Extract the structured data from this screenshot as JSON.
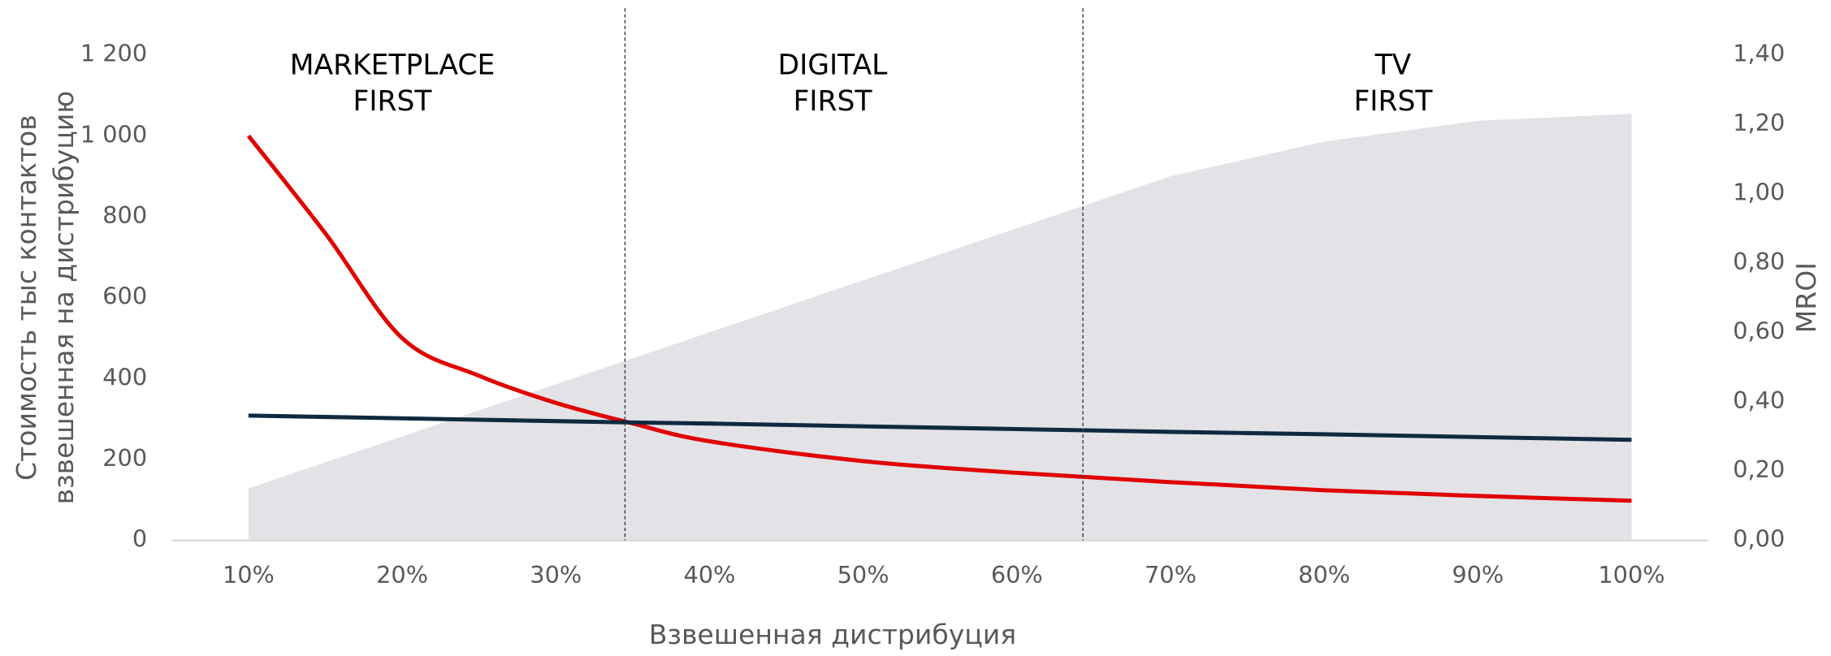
{
  "chart_data": {
    "type": "combo",
    "x": [
      10,
      15,
      20,
      25,
      30,
      35,
      40,
      50,
      60,
      70,
      80,
      90,
      100
    ],
    "xlim": [
      5,
      105
    ],
    "xticks": [
      {
        "value": 10,
        "label": "10%"
      },
      {
        "value": 20,
        "label": "20%"
      },
      {
        "value": 30,
        "label": "30%"
      },
      {
        "value": 40,
        "label": "40%"
      },
      {
        "value": 50,
        "label": "50%"
      },
      {
        "value": 60,
        "label": "60%"
      },
      {
        "value": 70,
        "label": "70%"
      },
      {
        "value": 80,
        "label": "80%"
      },
      {
        "value": 90,
        "label": "90%"
      },
      {
        "value": 100,
        "label": "100%"
      }
    ],
    "xlabel": "Взвешенная дистрибуция",
    "ylabel": [
      "Стоимость тыс контактов",
      "взвешенная на дистрибуцию"
    ],
    "y2label": "MROI",
    "ylim": [
      0,
      1200
    ],
    "yticks": [
      0,
      200,
      400,
      600,
      800,
      {
        "value": 1000,
        "label": "1 000"
      },
      {
        "value": 1200,
        "label": "1 200"
      }
    ],
    "y2lim": [
      0,
      1.4
    ],
    "y2ticks": [
      {
        "value": 0,
        "label": "0,00"
      },
      {
        "value": 0.2,
        "label": "0,20"
      },
      {
        "value": 0.4,
        "label": "0,40"
      },
      {
        "value": 0.6,
        "label": "0,60"
      },
      {
        "value": 0.8,
        "label": "0,80"
      },
      {
        "value": 1.0,
        "label": "1,00"
      },
      {
        "value": 1.2,
        "label": "1,20"
      },
      {
        "value": 1.4,
        "label": "1,40"
      }
    ],
    "series": [
      {
        "kind": "area",
        "axis": "y2",
        "color": "#e2e2e7",
        "values": [
          0.15,
          0.225,
          0.3,
          0.375,
          0.45,
          0.525,
          0.6,
          0.75,
          0.9,
          1.05,
          1.15,
          1.21,
          1.23
        ]
      },
      {
        "kind": "line",
        "axis": "y",
        "color": "#e00000",
        "values": [
          1000,
          759,
          500,
          407,
          340,
          289,
          245,
          196,
          167,
          144,
          124,
          110,
          98
        ]
      },
      {
        "kind": "line",
        "axis": "y2",
        "color": "#0f2a3f",
        "values": [
          0.36,
          0.356,
          0.352,
          0.348,
          0.344,
          0.34,
          0.337,
          0.329,
          0.321,
          0.313,
          0.306,
          0.298,
          0.29
        ]
      }
    ],
    "dividers": [
      34.5,
      64.3
    ],
    "annotations": [
      [
        "MARKETPLACE",
        "FIRST"
      ],
      [
        "DIGITAL",
        "FIRST"
      ],
      [
        "TV",
        "FIRST"
      ]
    ]
  }
}
